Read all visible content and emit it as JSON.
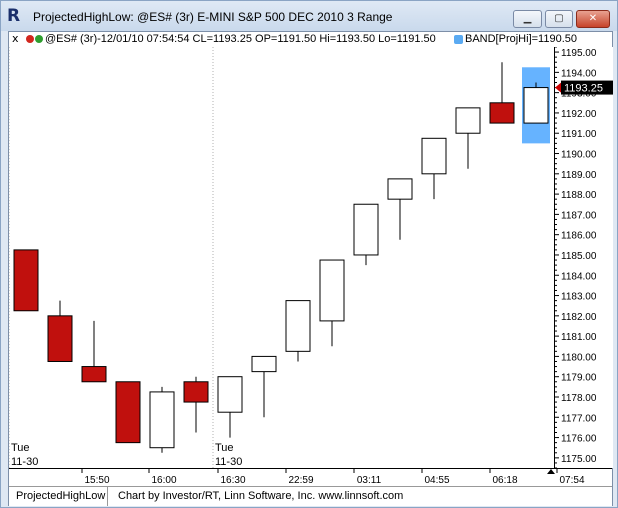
{
  "window": {
    "title": "ProjectedHighLow: @ES# (3r) E-MINI S&P 500 DEC 2010 3 Range",
    "icon": "app-logo-icon",
    "minimize_label": "▁",
    "maximize_label": "▢",
    "close_label": "✕"
  },
  "legend": {
    "close_label": "x",
    "quote": "@ES# (3r)-12/01/10 07:54:54 CL=1193.25 OP=1191.50 Hi=1193.50 Lo=1191.50",
    "band": "BAND[ProjHi]=1190.50",
    "colors": {
      "dot_red": "#d2271e",
      "dot_green": "#2f9e2f",
      "band": "#5aaaf2"
    }
  },
  "footer": {
    "study_name": "ProjectedHighLow",
    "credit": "Chart by Investor/RT, Linn Software, Inc. www.linnsoft.com"
  },
  "chart_data": {
    "type": "candlestick",
    "y_range": [
      1174.5,
      1195.25
    ],
    "y_ticks": [
      "1195.00",
      "1194.00",
      "1193.00",
      "1192.00",
      "1191.00",
      "1190.00",
      "1189.00",
      "1188.00",
      "1187.00",
      "1186.00",
      "1185.00",
      "1184.00",
      "1183.00",
      "1182.00",
      "1181.00",
      "1180.00",
      "1179.00",
      "1178.00",
      "1177.00",
      "1176.00",
      "1175.00"
    ],
    "last_price_label": "1193.25",
    "last_price": 1193.25,
    "x_labels": [
      "15:50",
      "16:00",
      "16:30",
      "22:59",
      "03:11",
      "04:55",
      "06:18",
      "07:54"
    ],
    "session_labels": [
      {
        "day": "Tue",
        "date": "11-30",
        "bar": 0
      },
      {
        "day": "Tue",
        "date": "11-30",
        "bar": 6
      }
    ],
    "colors": {
      "down": "#c0100d",
      "up": "#ffffff",
      "band": "#66b3ff",
      "wick": "#000000"
    },
    "bars": [
      {
        "open": 1185.25,
        "high": 1185.25,
        "low": 1182.25,
        "close": 1182.25
      },
      {
        "open": 1182.0,
        "high": 1182.75,
        "low": 1179.75,
        "close": 1179.75
      },
      {
        "open": 1179.5,
        "high": 1181.75,
        "low": 1178.75,
        "close": 1178.75
      },
      {
        "open": 1178.75,
        "high": 1178.75,
        "low": 1175.75,
        "close": 1175.75
      },
      {
        "open": 1175.5,
        "high": 1178.5,
        "low": 1175.25,
        "close": 1178.25
      },
      {
        "open": 1178.75,
        "high": 1179.0,
        "low": 1176.25,
        "close": 1177.75
      },
      {
        "open": 1177.25,
        "high": 1179.0,
        "low": 1176.0,
        "close": 1179.0
      },
      {
        "open": 1179.25,
        "high": 1180.0,
        "low": 1177.0,
        "close": 1180.0
      },
      {
        "open": 1180.25,
        "high": 1182.75,
        "low": 1179.75,
        "close": 1182.75
      },
      {
        "open": 1181.75,
        "high": 1184.75,
        "low": 1180.5,
        "close": 1184.75
      },
      {
        "open": 1185.0,
        "high": 1187.5,
        "low": 1184.5,
        "close": 1187.5
      },
      {
        "open": 1187.75,
        "high": 1188.75,
        "low": 1185.75,
        "close": 1188.75
      },
      {
        "open": 1189.0,
        "high": 1190.75,
        "low": 1187.75,
        "close": 1190.75
      },
      {
        "open": 1191.0,
        "high": 1192.25,
        "low": 1189.25,
        "close": 1192.25
      },
      {
        "open": 1192.5,
        "high": 1194.5,
        "low": 1191.5,
        "close": 1191.5
      },
      {
        "open": 1191.5,
        "high": 1193.5,
        "low": 1191.5,
        "close": 1193.25
      }
    ],
    "band": {
      "bar": 15,
      "low": 1190.5,
      "high": 1194.25
    }
  }
}
